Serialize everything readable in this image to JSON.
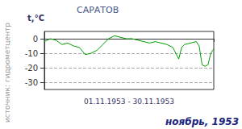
{
  "chart_data": {
    "type": "line",
    "title": "САРАТОВ",
    "ylabel": "t,°C",
    "xlabel": "01.11.1953 - 30.11.1953",
    "annotations": [
      "источник: гидрометцентр",
      "ноябрь, 1953"
    ],
    "x": [
      1,
      2,
      3,
      4,
      5,
      6,
      7,
      8,
      9,
      10,
      11,
      12,
      13,
      14,
      15,
      16,
      17,
      18,
      19,
      20,
      21,
      22,
      23,
      24,
      24.5,
      25,
      26,
      27,
      27.5,
      28,
      28.5,
      29,
      29.5,
      30
    ],
    "values": [
      -2,
      0,
      -1,
      -4,
      -3,
      -5,
      -6,
      -11,
      -10,
      -8,
      -4,
      0,
      2,
      1,
      0,
      0,
      -1,
      -2,
      -3,
      -2,
      -3,
      -4,
      -6,
      -14,
      -6,
      -4,
      -3,
      -2,
      -5,
      -18,
      -19,
      -18,
      -10,
      -7
    ],
    "color": "#00a000",
    "xlim": [
      1,
      30
    ],
    "xticks": [
      1,
      30
    ],
    "ylim": [
      -35,
      5
    ],
    "yticks": [
      0,
      -10,
      -20,
      -30
    ],
    "grid": true,
    "tick_labels": "y"
  }
}
